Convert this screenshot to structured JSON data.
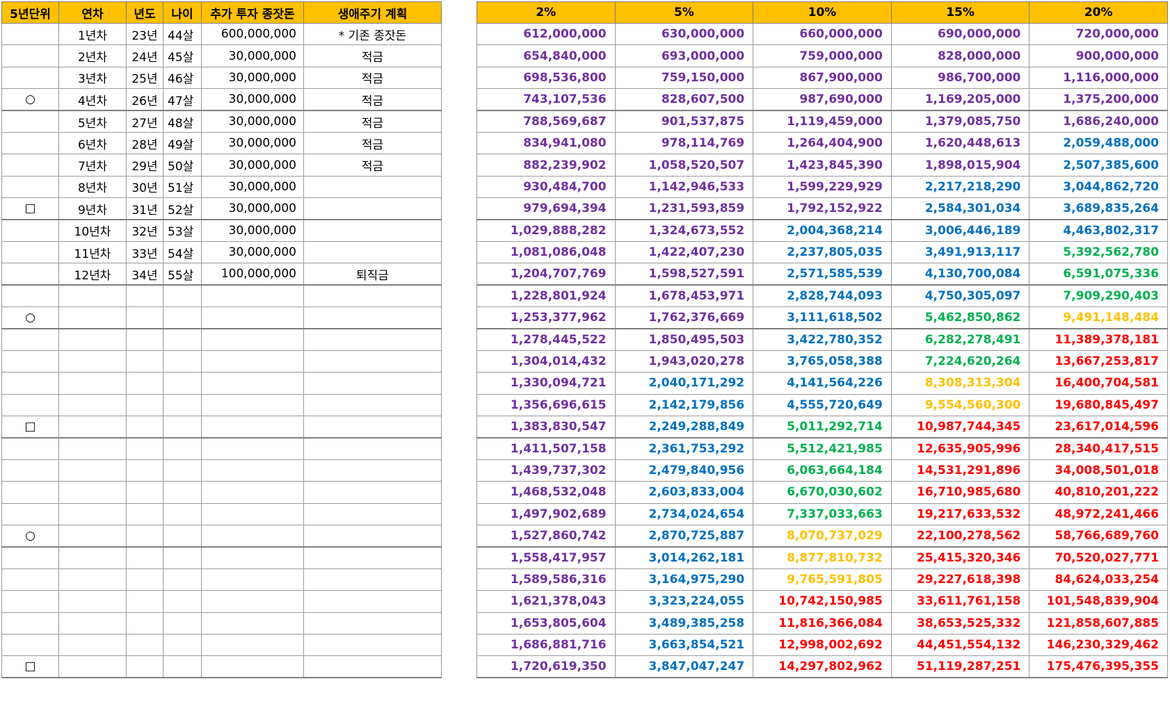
{
  "left_headers": [
    "5년단위",
    "연차",
    "년도",
    "나이",
    "추가 투자 종잣돈",
    "생애주기 계획"
  ],
  "left_rows": [
    {
      "mark": "",
      "year_no": "1년차",
      "year": "23년",
      "age": "44살",
      "invest": "600,000,000",
      "plan": "* 기존 종잣돈"
    },
    {
      "mark": "",
      "year_no": "2년차",
      "year": "24년",
      "age": "45살",
      "invest": "30,000,000",
      "plan": "적금"
    },
    {
      "mark": "",
      "year_no": "3년차",
      "year": "25년",
      "age": "46살",
      "invest": "30,000,000",
      "plan": "적금"
    },
    {
      "mark": "○",
      "year_no": "4년차",
      "year": "26년",
      "age": "47살",
      "invest": "30,000,000",
      "plan": "적금"
    },
    {
      "mark": "",
      "year_no": "5년차",
      "year": "27년",
      "age": "48살",
      "invest": "30,000,000",
      "plan": "적금"
    },
    {
      "mark": "",
      "year_no": "6년차",
      "year": "28년",
      "age": "49살",
      "invest": "30,000,000",
      "plan": "적금"
    },
    {
      "mark": "",
      "year_no": "7년차",
      "year": "29년",
      "age": "50살",
      "invest": "30,000,000",
      "plan": "적금"
    },
    {
      "mark": "",
      "year_no": "8년차",
      "year": "30년",
      "age": "51살",
      "invest": "30,000,000",
      "plan": ""
    },
    {
      "mark": "□",
      "year_no": "9년차",
      "year": "31년",
      "age": "52살",
      "invest": "30,000,000",
      "plan": ""
    },
    {
      "mark": "",
      "year_no": "10년차",
      "year": "32년",
      "age": "53살",
      "invest": "30,000,000",
      "plan": ""
    },
    {
      "mark": "",
      "year_no": "11년차",
      "year": "33년",
      "age": "54살",
      "invest": "30,000,000",
      "plan": ""
    },
    {
      "mark": "",
      "year_no": "12년차",
      "year": "34년",
      "age": "55살",
      "invest": "100,000,000",
      "plan": "퇴직금"
    },
    {
      "mark": "",
      "year_no": "",
      "year": "",
      "age": "",
      "invest": "",
      "plan": ""
    },
    {
      "mark": "○",
      "year_no": "",
      "year": "",
      "age": "",
      "invest": "",
      "plan": ""
    },
    {
      "mark": "",
      "year_no": "",
      "year": "",
      "age": "",
      "invest": "",
      "plan": ""
    },
    {
      "mark": "",
      "year_no": "",
      "year": "",
      "age": "",
      "invest": "",
      "plan": ""
    },
    {
      "mark": "",
      "year_no": "",
      "year": "",
      "age": "",
      "invest": "",
      "plan": ""
    },
    {
      "mark": "",
      "year_no": "",
      "year": "",
      "age": "",
      "invest": "",
      "plan": ""
    },
    {
      "mark": "□",
      "year_no": "",
      "year": "",
      "age": "",
      "invest": "",
      "plan": ""
    },
    {
      "mark": "",
      "year_no": "",
      "year": "",
      "age": "",
      "invest": "",
      "plan": ""
    },
    {
      "mark": "",
      "year_no": "",
      "year": "",
      "age": "",
      "invest": "",
      "plan": ""
    },
    {
      "mark": "",
      "year_no": "",
      "year": "",
      "age": "",
      "invest": "",
      "plan": ""
    },
    {
      "mark": "",
      "year_no": "",
      "year": "",
      "age": "",
      "invest": "",
      "plan": ""
    },
    {
      "mark": "○",
      "year_no": "",
      "year": "",
      "age": "",
      "invest": "",
      "plan": ""
    },
    {
      "mark": "",
      "year_no": "",
      "year": "",
      "age": "",
      "invest": "",
      "plan": ""
    },
    {
      "mark": "",
      "year_no": "",
      "year": "",
      "age": "",
      "invest": "",
      "plan": ""
    },
    {
      "mark": "",
      "year_no": "",
      "year": "",
      "age": "",
      "invest": "",
      "plan": ""
    },
    {
      "mark": "",
      "year_no": "",
      "year": "",
      "age": "",
      "invest": "",
      "plan": ""
    },
    {
      "mark": "",
      "year_no": "",
      "year": "",
      "age": "",
      "invest": "",
      "plan": ""
    },
    {
      "mark": "□",
      "year_no": "",
      "year": "",
      "age": "",
      "invest": "",
      "plan": ""
    }
  ],
  "right_headers": [
    "2%",
    "5%",
    "10%",
    "15%",
    "20%"
  ],
  "color_legend": {
    "p": "#7030a0",
    "b": "#0070c0",
    "g": "#00b050",
    "y": "#ffc000",
    "r": "#ff0000"
  },
  "right_rows": [
    [
      "612,000,000",
      "630,000,000",
      "660,000,000",
      "690,000,000",
      "720,000,000"
    ],
    [
      "654,840,000",
      "693,000,000",
      "759,000,000",
      "828,000,000",
      "900,000,000"
    ],
    [
      "698,536,800",
      "759,150,000",
      "867,900,000",
      "986,700,000",
      "1,116,000,000"
    ],
    [
      "743,107,536",
      "828,607,500",
      "987,690,000",
      "1,169,205,000",
      "1,375,200,000"
    ],
    [
      "788,569,687",
      "901,537,875",
      "1,119,459,000",
      "1,379,085,750",
      "1,686,240,000"
    ],
    [
      "834,941,080",
      "978,114,769",
      "1,264,404,900",
      "1,620,448,613",
      "2,059,488,000"
    ],
    [
      "882,239,902",
      "1,058,520,507",
      "1,423,845,390",
      "1,898,015,904",
      "2,507,385,600"
    ],
    [
      "930,484,700",
      "1,142,946,533",
      "1,599,229,929",
      "2,217,218,290",
      "3,044,862,720"
    ],
    [
      "979,694,394",
      "1,231,593,859",
      "1,792,152,922",
      "2,584,301,034",
      "3,689,835,264"
    ],
    [
      "1,029,888,282",
      "1,324,673,552",
      "2,004,368,214",
      "3,006,446,189",
      "4,463,802,317"
    ],
    [
      "1,081,086,048",
      "1,422,407,230",
      "2,237,805,035",
      "3,491,913,117",
      "5,392,562,780"
    ],
    [
      "1,204,707,769",
      "1,598,527,591",
      "2,571,585,539",
      "4,130,700,084",
      "6,591,075,336"
    ],
    [
      "1,228,801,924",
      "1,678,453,971",
      "2,828,744,093",
      "4,750,305,097",
      "7,909,290,403"
    ],
    [
      "1,253,377,962",
      "1,762,376,669",
      "3,111,618,502",
      "5,462,850,862",
      "9,491,148,484"
    ],
    [
      "1,278,445,522",
      "1,850,495,503",
      "3,422,780,352",
      "6,282,278,491",
      "11,389,378,181"
    ],
    [
      "1,304,014,432",
      "1,943,020,278",
      "3,765,058,388",
      "7,224,620,264",
      "13,667,253,817"
    ],
    [
      "1,330,094,721",
      "2,040,171,292",
      "4,141,564,226",
      "8,308,313,304",
      "16,400,704,581"
    ],
    [
      "1,356,696,615",
      "2,142,179,856",
      "4,555,720,649",
      "9,554,560,300",
      "19,680,845,497"
    ],
    [
      "1,383,830,547",
      "2,249,288,849",
      "5,011,292,714",
      "10,987,744,345",
      "23,617,014,596"
    ],
    [
      "1,411,507,158",
      "2,361,753,292",
      "5,512,421,985",
      "12,635,905,996",
      "28,340,417,515"
    ],
    [
      "1,439,737,302",
      "2,479,840,956",
      "6,063,664,184",
      "14,531,291,896",
      "34,008,501,018"
    ],
    [
      "1,468,532,048",
      "2,603,833,004",
      "6,670,030,602",
      "16,710,985,680",
      "40,810,201,222"
    ],
    [
      "1,497,902,689",
      "2,734,024,654",
      "7,337,033,663",
      "19,217,633,532",
      "48,972,241,466"
    ],
    [
      "1,527,860,742",
      "2,870,725,887",
      "8,070,737,029",
      "22,100,278,562",
      "58,766,689,760"
    ],
    [
      "1,558,417,957",
      "3,014,262,181",
      "8,877,810,732",
      "25,415,320,346",
      "70,520,027,771"
    ],
    [
      "1,589,586,316",
      "3,164,975,290",
      "9,765,591,805",
      "29,227,618,398",
      "84,624,033,254"
    ],
    [
      "1,621,378,043",
      "3,323,224,055",
      "10,742,150,985",
      "33,611,761,158",
      "101,548,839,904"
    ],
    [
      "1,653,805,604",
      "3,489,385,258",
      "11,816,366,084",
      "38,653,525,332",
      "121,858,607,885"
    ],
    [
      "1,686,881,716",
      "3,663,854,521",
      "12,998,002,692",
      "44,451,554,132",
      "146,230,329,462"
    ],
    [
      "1,720,619,350",
      "3,847,047,247",
      "14,297,802,962",
      "51,119,287,251",
      "175,476,395,355"
    ]
  ],
  "right_colors": [
    "ppppp",
    "ppppp",
    "ppppp",
    "ppppp",
    "ppppp",
    "ppppb",
    "ppppb",
    "pppbb",
    "pppbb",
    "ppbbb",
    "ppbbg",
    "ppbbg",
    "ppbbg",
    "ppbgy",
    "ppbgr",
    "ppbgr",
    "pbbyr",
    "pbbyr",
    "pbgrr",
    "pbgrr",
    "pbgrr",
    "pbgrr",
    "pbgrr",
    "pbyrr",
    "pbyrr",
    "pbyrr",
    "pbrrr",
    "pbrrr",
    "pbrrr",
    "pbrrr"
  ]
}
